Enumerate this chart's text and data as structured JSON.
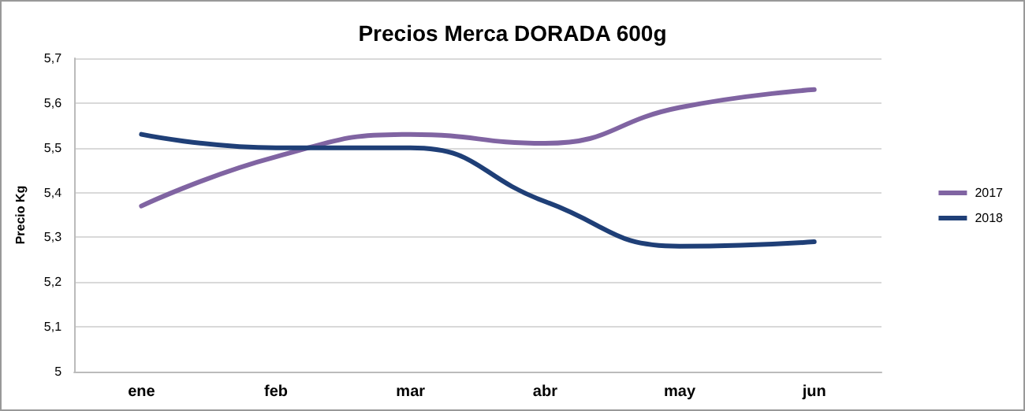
{
  "chart_data": {
    "type": "line",
    "title": "Precios Merca DORADA 600g",
    "ylabel": "Precio Kg",
    "categories": [
      "ene",
      "feb",
      "mar",
      "abr",
      "may",
      "jun"
    ],
    "series": [
      {
        "name": "2017",
        "color": "#8064a2",
        "values": [
          5.37,
          5.48,
          5.53,
          5.51,
          5.59,
          5.63
        ]
      },
      {
        "name": "2018",
        "color": "#1f3f77",
        "values": [
          5.53,
          5.5,
          5.5,
          5.38,
          5.28,
          5.29
        ]
      }
    ],
    "ylim": [
      5,
      5.7
    ],
    "yticks": [
      5,
      {
        "value": 5.1,
        "label": "5,1"
      },
      {
        "value": 5.2,
        "label": "5,2"
      },
      {
        "value": 5.3,
        "label": "5,3"
      },
      {
        "value": 5.4,
        "label": "5,4"
      },
      {
        "value": 5.5,
        "label": "5,5"
      },
      {
        "value": 5.6,
        "label": "5,6"
      },
      {
        "value": 5.7,
        "label": "5,7"
      }
    ],
    "grid": "y",
    "legend": "right",
    "marker": "none",
    "line_style": "solid"
  }
}
